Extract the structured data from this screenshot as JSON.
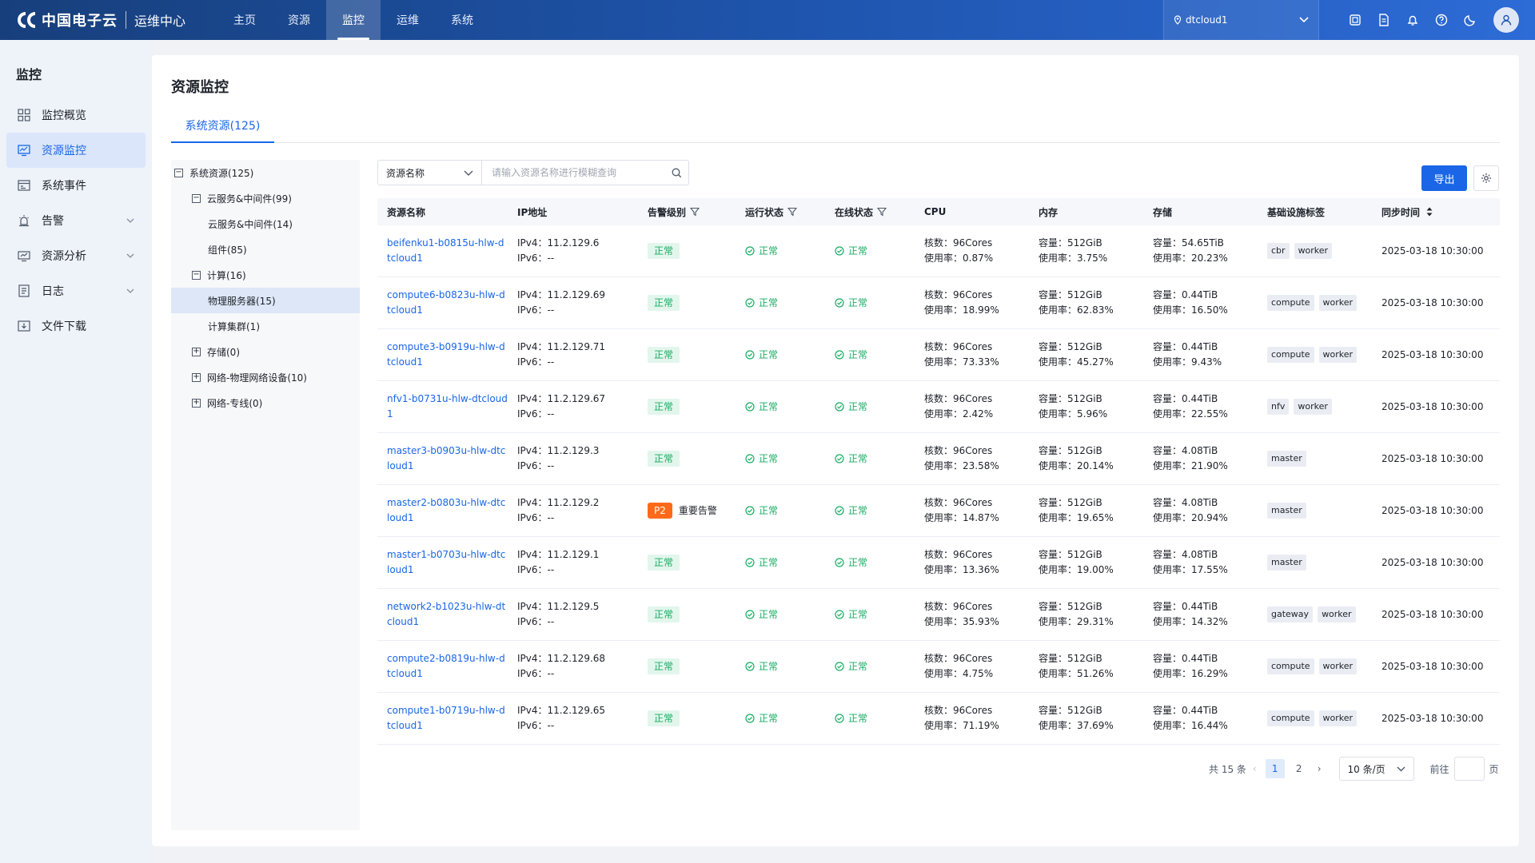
{
  "header": {
    "brand": "中国电子云",
    "subtitle": "运维中心",
    "nav": [
      {
        "label": "主页"
      },
      {
        "label": "资源"
      },
      {
        "label": "监控"
      },
      {
        "label": "运维"
      },
      {
        "label": "系统"
      }
    ],
    "active_nav": "监控",
    "region": "dtcloud1",
    "icons": [
      "screen-icon",
      "document-icon",
      "bell-icon",
      "help-icon",
      "moon-icon",
      "user-icon"
    ]
  },
  "sidebar": {
    "title": "监控",
    "items": [
      {
        "label": "监控概览",
        "icon": "grid-icon"
      },
      {
        "label": "资源监控",
        "icon": "monitor-icon"
      },
      {
        "label": "系统事件",
        "icon": "event-icon"
      },
      {
        "label": "告警",
        "icon": "alarm-icon"
      },
      {
        "label": "资源分析",
        "icon": "analysis-icon"
      },
      {
        "label": "日志",
        "icon": "log-icon"
      },
      {
        "label": "文件下载",
        "icon": "download-icon"
      }
    ],
    "active": "资源监控"
  },
  "main": {
    "title": "资源监控",
    "tab": "系统资源(125)"
  },
  "tree": [
    {
      "label": "系统资源(125)",
      "level": 0,
      "toggle": "−"
    },
    {
      "label": "云服务&中间件(99)",
      "level": 1,
      "toggle": "−"
    },
    {
      "label": "云服务&中间件(14)",
      "level": 2,
      "toggle": ""
    },
    {
      "label": "组件(85)",
      "level": 2,
      "toggle": ""
    },
    {
      "label": "计算(16)",
      "level": 1,
      "toggle": "−"
    },
    {
      "label": "物理服务器(15)",
      "level": 2,
      "toggle": ""
    },
    {
      "label": "计算集群(1)",
      "level": 2,
      "toggle": ""
    },
    {
      "label": "存储(0)",
      "level": 1,
      "toggle": "+"
    },
    {
      "label": "网络-物理网络设备(10)",
      "level": 1,
      "toggle": "+"
    },
    {
      "label": "网络-专线(0)",
      "level": 1,
      "toggle": "+"
    }
  ],
  "tree_active": "物理服务器(15)",
  "search": {
    "field": "资源名称",
    "placeholder": "请输入资源名称进行模糊查询"
  },
  "toolbar": {
    "export_label": "导出"
  },
  "table": {
    "columns": [
      "资源名称",
      "IP地址",
      "告警级别",
      "运行状态",
      "在线状态",
      "CPU",
      "内存",
      "存储",
      "基础设施标签",
      "同步时间"
    ],
    "rows": [
      {
        "name": "beifenku1-b0815u-hlw-dtcloud1",
        "ipv4": "IPv4：11.2.129.6",
        "ipv6": "IPv6：--",
        "alarm": "正常",
        "alarm_level": "",
        "run": "正常",
        "online": "正常",
        "cpu_cores": "核数：96Cores",
        "cpu_usage": "使用率：0.87%",
        "mem_cap": "容量：512GiB",
        "mem_usage": "使用率：3.75%",
        "sto_cap": "容量：54.65TiB",
        "sto_usage": "使用率：20.23%",
        "tags": [
          "cbr",
          "worker"
        ],
        "time": "2025-03-18 10:30:00"
      },
      {
        "name": "compute6-b0823u-hlw-dtcloud1",
        "ipv4": "IPv4：11.2.129.69",
        "ipv6": "IPv6：--",
        "alarm": "正常",
        "alarm_level": "",
        "run": "正常",
        "online": "正常",
        "cpu_cores": "核数：96Cores",
        "cpu_usage": "使用率：18.99%",
        "mem_cap": "容量：512GiB",
        "mem_usage": "使用率：62.83%",
        "sto_cap": "容量：0.44TiB",
        "sto_usage": "使用率：16.50%",
        "tags": [
          "compute",
          "worker"
        ],
        "time": "2025-03-18 10:30:00"
      },
      {
        "name": "compute3-b0919u-hlw-dtcloud1",
        "ipv4": "IPv4：11.2.129.71",
        "ipv6": "IPv6：--",
        "alarm": "正常",
        "alarm_level": "",
        "run": "正常",
        "online": "正常",
        "cpu_cores": "核数：96Cores",
        "cpu_usage": "使用率：73.33%",
        "mem_cap": "容量：512GiB",
        "mem_usage": "使用率：45.27%",
        "sto_cap": "容量：0.44TiB",
        "sto_usage": "使用率：9.43%",
        "tags": [
          "compute",
          "worker"
        ],
        "time": "2025-03-18 10:30:00"
      },
      {
        "name": "nfv1-b0731u-hlw-dtcloud1",
        "ipv4": "IPv4：11.2.129.67",
        "ipv6": "IPv6：--",
        "alarm": "正常",
        "alarm_level": "",
        "run": "正常",
        "online": "正常",
        "cpu_cores": "核数：96Cores",
        "cpu_usage": "使用率：2.42%",
        "mem_cap": "容量：512GiB",
        "mem_usage": "使用率：5.96%",
        "sto_cap": "容量：0.44TiB",
        "sto_usage": "使用率：22.55%",
        "tags": [
          "nfv",
          "worker"
        ],
        "time": "2025-03-18 10:30:00"
      },
      {
        "name": "master3-b0903u-hlw-dtcloud1",
        "ipv4": "IPv4：11.2.129.3",
        "ipv6": "IPv6：--",
        "alarm": "正常",
        "alarm_level": "",
        "run": "正常",
        "online": "正常",
        "cpu_cores": "核数：96Cores",
        "cpu_usage": "使用率：23.58%",
        "mem_cap": "容量：512GiB",
        "mem_usage": "使用率：20.14%",
        "sto_cap": "容量：4.08TiB",
        "sto_usage": "使用率：21.90%",
        "tags": [
          "master"
        ],
        "time": "2025-03-18 10:30:00"
      },
      {
        "name": "master2-b0803u-hlw-dtcloud1",
        "ipv4": "IPv4：11.2.129.2",
        "ipv6": "IPv6：--",
        "alarm": "重要告警",
        "alarm_level": "P2",
        "run": "正常",
        "online": "正常",
        "cpu_cores": "核数：96Cores",
        "cpu_usage": "使用率：14.87%",
        "mem_cap": "容量：512GiB",
        "mem_usage": "使用率：19.65%",
        "sto_cap": "容量：4.08TiB",
        "sto_usage": "使用率：20.94%",
        "tags": [
          "master"
        ],
        "time": "2025-03-18 10:30:00"
      },
      {
        "name": "master1-b0703u-hlw-dtcloud1",
        "ipv4": "IPv4：11.2.129.1",
        "ipv6": "IPv6：--",
        "alarm": "正常",
        "alarm_level": "",
        "run": "正常",
        "online": "正常",
        "cpu_cores": "核数：96Cores",
        "cpu_usage": "使用率：13.36%",
        "mem_cap": "容量：512GiB",
        "mem_usage": "使用率：19.00%",
        "sto_cap": "容量：4.08TiB",
        "sto_usage": "使用率：17.55%",
        "tags": [
          "master"
        ],
        "time": "2025-03-18 10:30:00"
      },
      {
        "name": "network2-b1023u-hlw-dtcloud1",
        "ipv4": "IPv4：11.2.129.5",
        "ipv6": "IPv6：--",
        "alarm": "正常",
        "alarm_level": "",
        "run": "正常",
        "online": "正常",
        "cpu_cores": "核数：96Cores",
        "cpu_usage": "使用率：35.93%",
        "mem_cap": "容量：512GiB",
        "mem_usage": "使用率：29.31%",
        "sto_cap": "容量：0.44TiB",
        "sto_usage": "使用率：14.32%",
        "tags": [
          "gateway",
          "worker"
        ],
        "time": "2025-03-18 10:30:00"
      },
      {
        "name": "compute2-b0819u-hlw-dtcloud1",
        "ipv4": "IPv4：11.2.129.68",
        "ipv6": "IPv6：--",
        "alarm": "正常",
        "alarm_level": "",
        "run": "正常",
        "online": "正常",
        "cpu_cores": "核数：96Cores",
        "cpu_usage": "使用率：4.75%",
        "mem_cap": "容量：512GiB",
        "mem_usage": "使用率：51.26%",
        "sto_cap": "容量：0.44TiB",
        "sto_usage": "使用率：16.29%",
        "tags": [
          "compute",
          "worker"
        ],
        "time": "2025-03-18 10:30:00"
      },
      {
        "name": "compute1-b0719u-hlw-dtcloud1",
        "ipv4": "IPv4：11.2.129.65",
        "ipv6": "IPv6：--",
        "alarm": "正常",
        "alarm_level": "",
        "run": "正常",
        "online": "正常",
        "cpu_cores": "核数：96Cores",
        "cpu_usage": "使用率：71.19%",
        "mem_cap": "容量：512GiB",
        "mem_usage": "使用率：37.69%",
        "sto_cap": "容量：0.44TiB",
        "sto_usage": "使用率：16.44%",
        "tags": [
          "compute",
          "worker"
        ],
        "time": "2025-03-18 10:30:00"
      }
    ]
  },
  "pagination": {
    "total": "共 15 条",
    "pages": [
      "1",
      "2"
    ],
    "current": "1",
    "page_size": "10 条/页",
    "goto_label": "前往",
    "page_suffix": "页"
  },
  "colors": {
    "brand": "#1f56b0",
    "accent": "#1a66e6",
    "success": "#1aab63",
    "warning": "#ff6a1a"
  }
}
